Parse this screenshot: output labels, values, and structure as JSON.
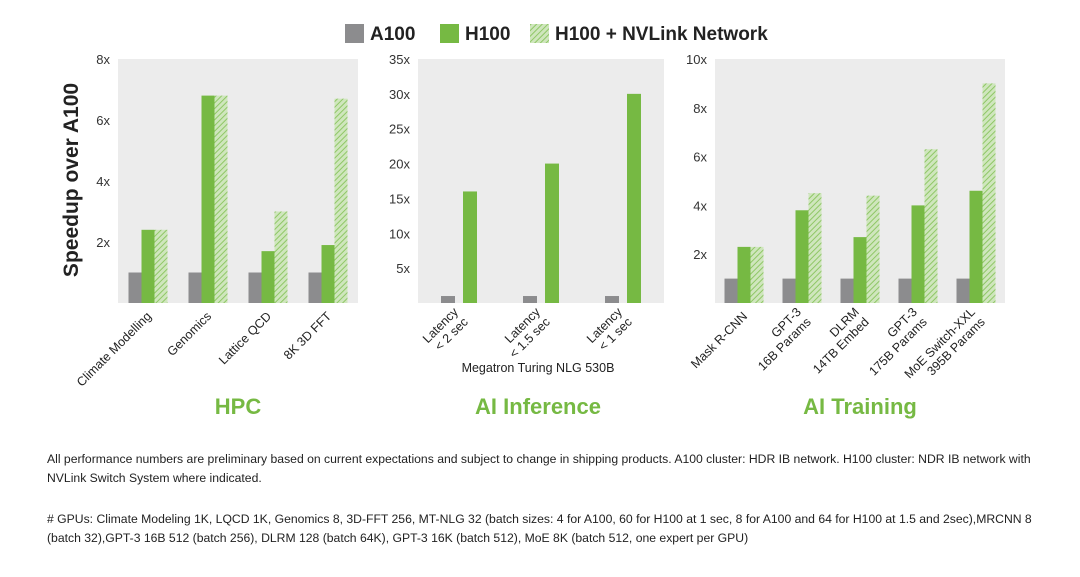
{
  "legend": {
    "items": [
      {
        "label": "A100",
        "color": "#8c8c8e",
        "pattern": "solid"
      },
      {
        "label": "H100",
        "color": "#76b943",
        "pattern": "solid"
      },
      {
        "label": "H100 + NVLink Network",
        "color": "#a9d68a",
        "pattern": "hatched"
      }
    ]
  },
  "ylabel": "Speedup over A100",
  "colors": {
    "panel_bg": "#ececec",
    "accent": "#76b943",
    "a100": "#8c8c8e",
    "h100": "#76b943",
    "nvlink": "#a9d68a"
  },
  "chart_data": [
    {
      "type": "bar",
      "title": "HPC",
      "ylabel": "Speedup over A100",
      "ylim": [
        0,
        8
      ],
      "yticks": [
        2,
        4,
        6,
        8
      ],
      "ytick_labels": [
        "2x",
        "4x",
        "6x",
        "8x"
      ],
      "categories": [
        "Climate Modelling",
        "Genomics",
        "Lattice QCD",
        "8K 3D FFT"
      ],
      "series": [
        {
          "name": "A100",
          "values": [
            1,
            1,
            1,
            1
          ]
        },
        {
          "name": "H100",
          "values": [
            2.4,
            6.8,
            1.7,
            1.9
          ]
        },
        {
          "name": "H100 + NVLink Network",
          "values": [
            2.4,
            6.8,
            3.0,
            6.7
          ]
        }
      ],
      "grid": false,
      "legend": "top"
    },
    {
      "type": "bar",
      "title": "AI Inference",
      "xlabel": "Megatron Turing NLG 530B",
      "ylim": [
        0,
        35
      ],
      "yticks": [
        5,
        10,
        15,
        20,
        25,
        30,
        35
      ],
      "ytick_labels": [
        "5x",
        "10x",
        "15x",
        "20x",
        "25x",
        "30x",
        "35x"
      ],
      "categories": [
        [
          "Latency",
          "< 2 sec"
        ],
        [
          "Latency",
          "< 1.5 sec"
        ],
        [
          "Latency",
          "< 1 sec"
        ]
      ],
      "series": [
        {
          "name": "A100",
          "values": [
            1,
            1,
            1
          ]
        },
        {
          "name": "H100",
          "values": [
            16,
            20,
            30
          ]
        }
      ],
      "grid": false,
      "legend": "top"
    },
    {
      "type": "bar",
      "title": "AI Training",
      "ylim": [
        0,
        10
      ],
      "yticks": [
        2,
        4,
        6,
        8,
        10
      ],
      "ytick_labels": [
        "2x",
        "4x",
        "6x",
        "8x",
        "10x"
      ],
      "categories": [
        [
          "Mask R-CNN"
        ],
        [
          "GPT-3",
          "16B Params"
        ],
        [
          "DLRM",
          "14TB Embed"
        ],
        [
          "GPT-3",
          "175B Params"
        ],
        [
          "MoE Switch-XXL",
          "395B Params"
        ]
      ],
      "series": [
        {
          "name": "A100",
          "values": [
            1,
            1,
            1,
            1,
            1
          ]
        },
        {
          "name": "H100",
          "values": [
            2.3,
            3.8,
            2.7,
            4.0,
            4.6
          ]
        },
        {
          "name": "H100 + NVLink Network",
          "values": [
            2.3,
            4.5,
            4.4,
            6.3,
            9.0
          ]
        }
      ],
      "grid": false,
      "legend": "top"
    }
  ],
  "footnotes": {
    "line1": "All performance numbers are preliminary based on current expectations and subject to change in shipping products. A100 cluster: HDR IB network. H100 cluster: NDR IB network with NVLink Switch System where indicated.",
    "line2": "# GPUs: Climate Modeling 1K, LQCD 1K, Genomics 8, 3D-FFT 256, MT-NLG 32 (batch sizes: 4 for A100, 60 for H100 at 1 sec, 8 for A100 and 64 for H100 at 1.5 and 2sec),MRCNN 8 (batch 32),GPT-3 16B 512 (batch 256), DLRM 128 (batch 64K), GPT-3 16K (batch 512), MoE 8K (batch 512, one expert per GPU)"
  }
}
